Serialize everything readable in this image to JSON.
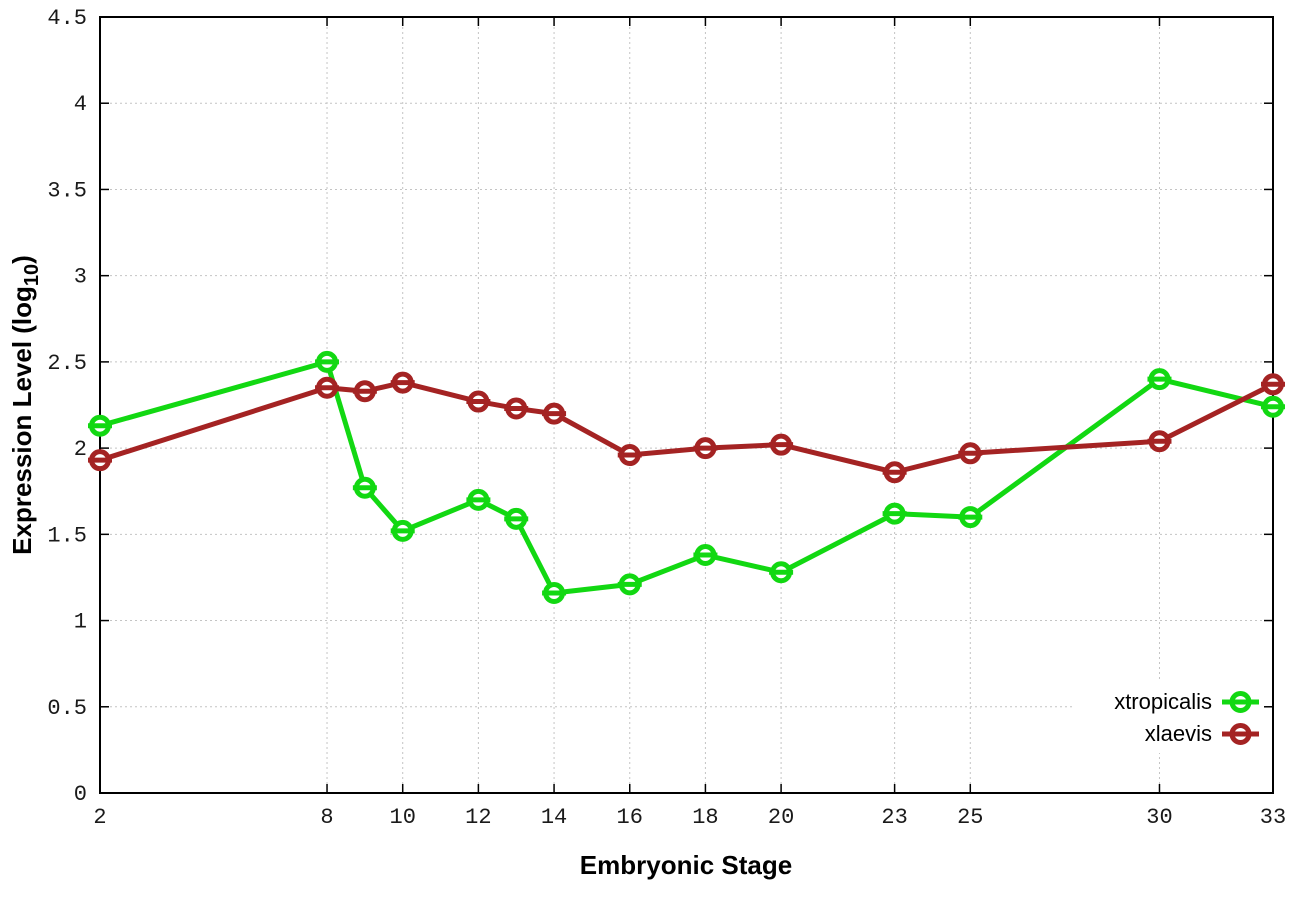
{
  "figure": {
    "background": "#ffffff",
    "border_color": "#000000",
    "grid_color": "#c4c4c4",
    "tick_color": "#1a1a1a",
    "xlabel": "Embryonic Stage",
    "ylabel_prefix": "Expression Level (log",
    "ylabel_sub": "10",
    "ylabel_suffix": ")"
  },
  "chart_data": {
    "type": "line",
    "title": "",
    "xlabel": "Embryonic Stage",
    "ylabel": "Expression Level (log10)",
    "x": [
      2,
      8,
      9,
      10,
      12,
      13,
      14,
      16,
      18,
      20,
      23,
      25,
      30,
      33
    ],
    "xticks": [
      2,
      8,
      10,
      12,
      14,
      16,
      18,
      20,
      23,
      25,
      30,
      33
    ],
    "ytick_labels": [
      "0",
      "0.5",
      "1",
      "1.5",
      "2",
      "2.5",
      "3",
      "3.5",
      "4",
      "4.5"
    ],
    "xlim": [
      2,
      33
    ],
    "ylim": [
      0,
      4.5
    ],
    "grid": true,
    "marker": "open-circle-with-horizontal-bar",
    "legend_position": "bottom-right-inside",
    "series": [
      {
        "name": "xtropicalis",
        "color": "#12d812",
        "values": [
          2.13,
          2.5,
          1.77,
          1.52,
          1.7,
          1.59,
          1.16,
          1.21,
          1.38,
          1.28,
          1.62,
          1.6,
          2.4,
          2.24
        ]
      },
      {
        "name": "xlaevis",
        "color": "#a42323",
        "values": [
          1.93,
          2.35,
          2.33,
          2.38,
          2.27,
          2.23,
          2.2,
          1.96,
          2.0,
          2.02,
          1.86,
          1.97,
          2.04,
          2.37
        ]
      }
    ]
  }
}
